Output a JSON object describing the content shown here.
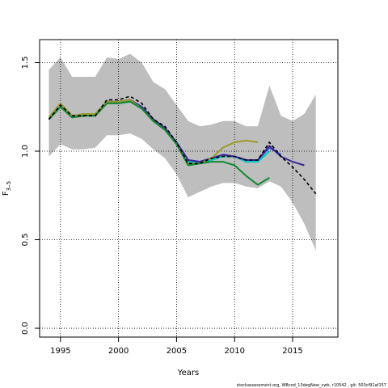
{
  "chart_data": {
    "type": "line",
    "xlabel": "Years",
    "ylabel_main": "F",
    "ylabel_sub": "3–5",
    "xlim": [
      1993.2,
      2018.9
    ],
    "ylim": [
      -0.05,
      1.63
    ],
    "xticks": [
      1995,
      2000,
      2005,
      2010,
      2015
    ],
    "yticks": [
      0.0,
      0.5,
      1.0,
      1.5
    ],
    "ytick_labels": [
      "0.0",
      "0.5",
      "1.0",
      "1.5"
    ],
    "grid": true,
    "footnote": "stockassessment.org, WBcod_13degNew_cwb, r10542 , git: 503cf91af157",
    "band": {
      "x": [
        1994,
        1995,
        1996,
        1997,
        1998,
        1999,
        2000,
        2001,
        2002,
        2003,
        2004,
        2005,
        2006,
        2007,
        2008,
        2009,
        2010,
        2011,
        2012,
        2013,
        2014,
        2015,
        2016,
        2017
      ],
      "upper": [
        1.46,
        1.53,
        1.42,
        1.42,
        1.42,
        1.53,
        1.52,
        1.55,
        1.5,
        1.39,
        1.35,
        1.26,
        1.17,
        1.14,
        1.15,
        1.17,
        1.17,
        1.14,
        1.14,
        1.37,
        1.2,
        1.17,
        1.21,
        1.32
      ],
      "lower": [
        0.97,
        1.04,
        1.01,
        1.01,
        1.02,
        1.09,
        1.09,
        1.1,
        1.07,
        1.01,
        0.96,
        0.87,
        0.74,
        0.77,
        0.8,
        0.82,
        0.82,
        0.8,
        0.79,
        0.83,
        0.8,
        0.71,
        0.59,
        0.44
      ],
      "color": "#bebebe"
    },
    "series": [
      {
        "color": "#000000",
        "dashed": true,
        "x": [
          1994,
          1995,
          1996,
          1997,
          1998,
          1999,
          2000,
          2001,
          2002,
          2003,
          2004,
          2005,
          2006,
          2007,
          2008,
          2009,
          2010,
          2011,
          2012,
          2013,
          2014,
          2015,
          2016,
          2017
        ],
        "y": [
          1.18,
          1.26,
          1.2,
          1.2,
          1.2,
          1.29,
          1.29,
          1.31,
          1.27,
          1.18,
          1.14,
          1.05,
          0.93,
          0.93,
          0.96,
          0.97,
          0.97,
          0.95,
          0.95,
          1.05,
          0.97,
          0.91,
          0.84,
          0.76
        ]
      },
      {
        "color": "#00c8c8",
        "x": [
          1994,
          1995,
          1996,
          1997,
          1998,
          1999,
          2000,
          2001,
          2002,
          2003,
          2004,
          2005,
          2006,
          2007,
          2008,
          2009,
          2010,
          2011,
          2012,
          2013
        ],
        "y": [
          1.18,
          1.25,
          1.2,
          1.21,
          1.21,
          1.27,
          1.28,
          1.28,
          1.24,
          1.17,
          1.12,
          1.04,
          0.94,
          0.93,
          0.95,
          0.97,
          0.97,
          0.94,
          0.94,
          1.0
        ]
      },
      {
        "color": "#2255cc",
        "x": [
          1994,
          1995,
          1996,
          1997,
          1998,
          1999,
          2000,
          2001,
          2002,
          2003,
          2004,
          2005,
          2006,
          2007,
          2008,
          2009,
          2010,
          2011,
          2012,
          2013,
          2014
        ],
        "y": [
          1.18,
          1.25,
          1.2,
          1.2,
          1.21,
          1.28,
          1.28,
          1.29,
          1.25,
          1.18,
          1.13,
          1.05,
          0.95,
          0.94,
          0.96,
          0.98,
          0.97,
          0.95,
          0.95,
          1.02,
          0.98
        ]
      },
      {
        "color": "#3a2699",
        "x": [
          1994,
          1995,
          1996,
          1997,
          1998,
          1999,
          2000,
          2001,
          2002,
          2003,
          2004,
          2005,
          2006,
          2007,
          2008,
          2009,
          2010,
          2011,
          2012,
          2013,
          2014,
          2015,
          2016
        ],
        "y": [
          1.18,
          1.25,
          1.2,
          1.2,
          1.21,
          1.28,
          1.28,
          1.29,
          1.25,
          1.18,
          1.13,
          1.05,
          0.95,
          0.94,
          0.96,
          0.98,
          0.97,
          0.95,
          0.95,
          1.03,
          0.97,
          0.94,
          0.92
        ]
      },
      {
        "color": "#9a9a2a",
        "x": [
          1994,
          1995,
          1996,
          1997,
          1998,
          1999,
          2000,
          2001,
          2002,
          2003,
          2004,
          2005,
          2006,
          2007,
          2008,
          2009,
          2010,
          2011,
          2012
        ],
        "y": [
          1.19,
          1.27,
          1.2,
          1.21,
          1.21,
          1.28,
          1.28,
          1.29,
          1.24,
          1.17,
          1.12,
          1.04,
          0.93,
          0.93,
          0.96,
          1.02,
          1.05,
          1.06,
          1.05
        ]
      },
      {
        "color": "#118833",
        "x": [
          1994,
          1995,
          1996,
          1997,
          1998,
          1999,
          2000,
          2001,
          2002,
          2003,
          2004,
          2005,
          2006,
          2007,
          2008,
          2009,
          2010,
          2011,
          2012,
          2013
        ],
        "y": [
          1.18,
          1.25,
          1.19,
          1.2,
          1.2,
          1.27,
          1.27,
          1.28,
          1.24,
          1.17,
          1.12,
          1.04,
          0.92,
          0.93,
          0.94,
          0.94,
          0.92,
          0.86,
          0.81,
          0.85
        ]
      }
    ]
  }
}
